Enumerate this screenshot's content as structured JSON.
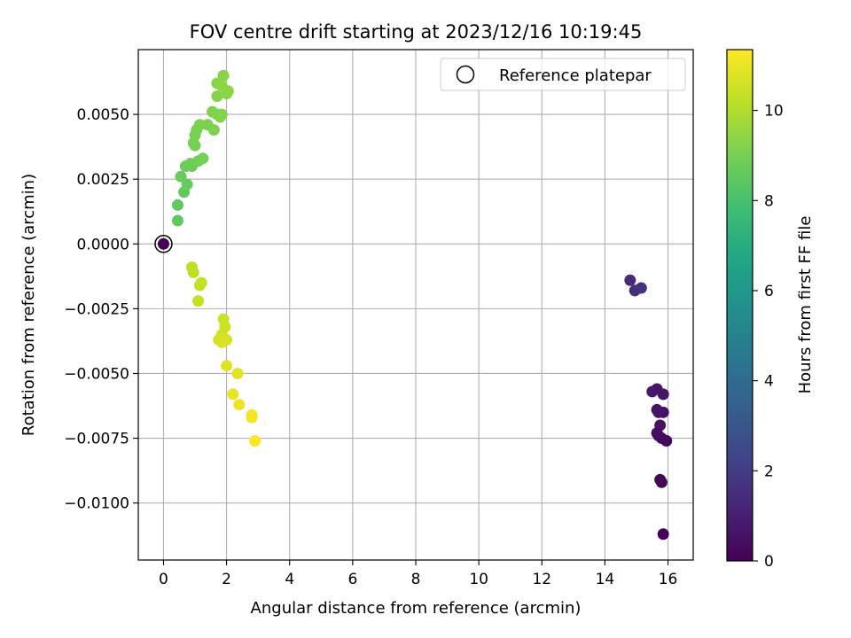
{
  "chart_data": {
    "type": "scatter",
    "title": "FOV centre drift starting at 2023/12/16 10:19:45",
    "xlabel": "Angular distance from reference (arcmin)",
    "ylabel": "Rotation from reference (arcmin)",
    "xlim": [
      -0.8,
      16.8
    ],
    "ylim": [
      -0.0122,
      0.0075
    ],
    "x_ticks": [
      0,
      2,
      4,
      6,
      8,
      10,
      12,
      14,
      16
    ],
    "x_tick_labels": [
      "0",
      "2",
      "4",
      "6",
      "8",
      "10",
      "12",
      "14",
      "16"
    ],
    "y_ticks": [
      -0.01,
      -0.0075,
      -0.005,
      -0.0025,
      0,
      0.0025,
      0.005
    ],
    "y_tick_labels": [
      "−0.0100",
      "−0.0075",
      "−0.0050",
      "−0.0025",
      "0.0000",
      "0.0025",
      "0.0050"
    ],
    "grid": true,
    "legend": {
      "position": "top-right",
      "entries": [
        "Reference platepar"
      ]
    },
    "reference_point": {
      "x": 0,
      "y": 0
    },
    "colorbar": {
      "label": "Hours from first FF file",
      "colormap": "viridis",
      "range": [
        0,
        11.35
      ],
      "ticks": [
        0,
        2,
        4,
        6,
        8,
        10
      ],
      "tick_labels": [
        "0",
        "2",
        "4",
        "6",
        "8",
        "10"
      ]
    },
    "points": [
      {
        "x": 0.0,
        "y": 0.0,
        "c": 0.0
      },
      {
        "x": 15.85,
        "y": -0.0112,
        "c": 0.1
      },
      {
        "x": 15.8,
        "y": -0.0092,
        "c": 0.15
      },
      {
        "x": 15.75,
        "y": -0.0091,
        "c": 0.2
      },
      {
        "x": 15.95,
        "y": -0.0076,
        "c": 0.25
      },
      {
        "x": 15.8,
        "y": -0.0075,
        "c": 0.3
      },
      {
        "x": 15.7,
        "y": -0.0074,
        "c": 0.35
      },
      {
        "x": 15.65,
        "y": -0.0073,
        "c": 0.4
      },
      {
        "x": 15.75,
        "y": -0.007,
        "c": 0.45
      },
      {
        "x": 15.85,
        "y": -0.0065,
        "c": 0.5
      },
      {
        "x": 15.7,
        "y": -0.0065,
        "c": 0.55
      },
      {
        "x": 15.65,
        "y": -0.0064,
        "c": 0.6
      },
      {
        "x": 15.85,
        "y": -0.0058,
        "c": 0.65
      },
      {
        "x": 15.65,
        "y": -0.0056,
        "c": 0.7
      },
      {
        "x": 15.5,
        "y": -0.0057,
        "c": 0.75
      },
      {
        "x": 14.8,
        "y": -0.0014,
        "c": 1.4
      },
      {
        "x": 14.95,
        "y": -0.0018,
        "c": 1.5
      },
      {
        "x": 15.15,
        "y": -0.0017,
        "c": 1.6
      },
      {
        "x": 0.45,
        "y": 0.0009,
        "c": 8.5
      },
      {
        "x": 0.45,
        "y": 0.0015,
        "c": 8.55
      },
      {
        "x": 0.65,
        "y": 0.002,
        "c": 8.6
      },
      {
        "x": 0.75,
        "y": 0.0023,
        "c": 8.65
      },
      {
        "x": 0.55,
        "y": 0.0026,
        "c": 8.7
      },
      {
        "x": 0.7,
        "y": 0.003,
        "c": 8.75
      },
      {
        "x": 0.9,
        "y": 0.003,
        "c": 8.8
      },
      {
        "x": 0.85,
        "y": 0.0031,
        "c": 8.85
      },
      {
        "x": 1.1,
        "y": 0.0032,
        "c": 8.9
      },
      {
        "x": 1.25,
        "y": 0.0033,
        "c": 8.95
      },
      {
        "x": 1.0,
        "y": 0.0038,
        "c": 9.0
      },
      {
        "x": 0.95,
        "y": 0.0039,
        "c": 9.0
      },
      {
        "x": 1.0,
        "y": 0.0042,
        "c": 9.05
      },
      {
        "x": 1.05,
        "y": 0.0044,
        "c": 9.05
      },
      {
        "x": 1.15,
        "y": 0.0046,
        "c": 9.1
      },
      {
        "x": 1.4,
        "y": 0.0046,
        "c": 9.1
      },
      {
        "x": 1.6,
        "y": 0.0044,
        "c": 9.15
      },
      {
        "x": 1.55,
        "y": 0.0051,
        "c": 9.15
      },
      {
        "x": 1.7,
        "y": 0.005,
        "c": 9.2
      },
      {
        "x": 1.8,
        "y": 0.0049,
        "c": 9.2
      },
      {
        "x": 1.85,
        "y": 0.005,
        "c": 9.25
      },
      {
        "x": 1.7,
        "y": 0.0057,
        "c": 9.25
      },
      {
        "x": 1.7,
        "y": 0.0062,
        "c": 9.3
      },
      {
        "x": 1.9,
        "y": 0.0065,
        "c": 9.3
      },
      {
        "x": 2.0,
        "y": 0.0058,
        "c": 9.35
      },
      {
        "x": 2.05,
        "y": 0.0059,
        "c": 9.35
      },
      {
        "x": 1.85,
        "y": 0.0061,
        "c": 9.4
      },
      {
        "x": 0.9,
        "y": -0.0009,
        "c": 10.2
      },
      {
        "x": 0.95,
        "y": -0.0011,
        "c": 10.25
      },
      {
        "x": 1.2,
        "y": -0.0015,
        "c": 10.3
      },
      {
        "x": 1.15,
        "y": -0.0016,
        "c": 10.35
      },
      {
        "x": 1.1,
        "y": -0.0022,
        "c": 10.4
      },
      {
        "x": 1.9,
        "y": -0.0029,
        "c": 10.45
      },
      {
        "x": 1.95,
        "y": -0.0032,
        "c": 10.5
      },
      {
        "x": 1.85,
        "y": -0.0035,
        "c": 10.55
      },
      {
        "x": 1.75,
        "y": -0.0037,
        "c": 10.6
      },
      {
        "x": 2.0,
        "y": -0.0037,
        "c": 10.65
      },
      {
        "x": 1.85,
        "y": -0.0038,
        "c": 10.7
      },
      {
        "x": 2.0,
        "y": -0.0047,
        "c": 10.8
      },
      {
        "x": 2.35,
        "y": -0.005,
        "c": 10.85
      },
      {
        "x": 2.2,
        "y": -0.0058,
        "c": 10.95
      },
      {
        "x": 2.4,
        "y": -0.0062,
        "c": 11.05
      },
      {
        "x": 2.8,
        "y": -0.0066,
        "c": 11.15
      },
      {
        "x": 2.8,
        "y": -0.0067,
        "c": 11.2
      },
      {
        "x": 2.9,
        "y": -0.0076,
        "c": 11.3
      }
    ]
  }
}
